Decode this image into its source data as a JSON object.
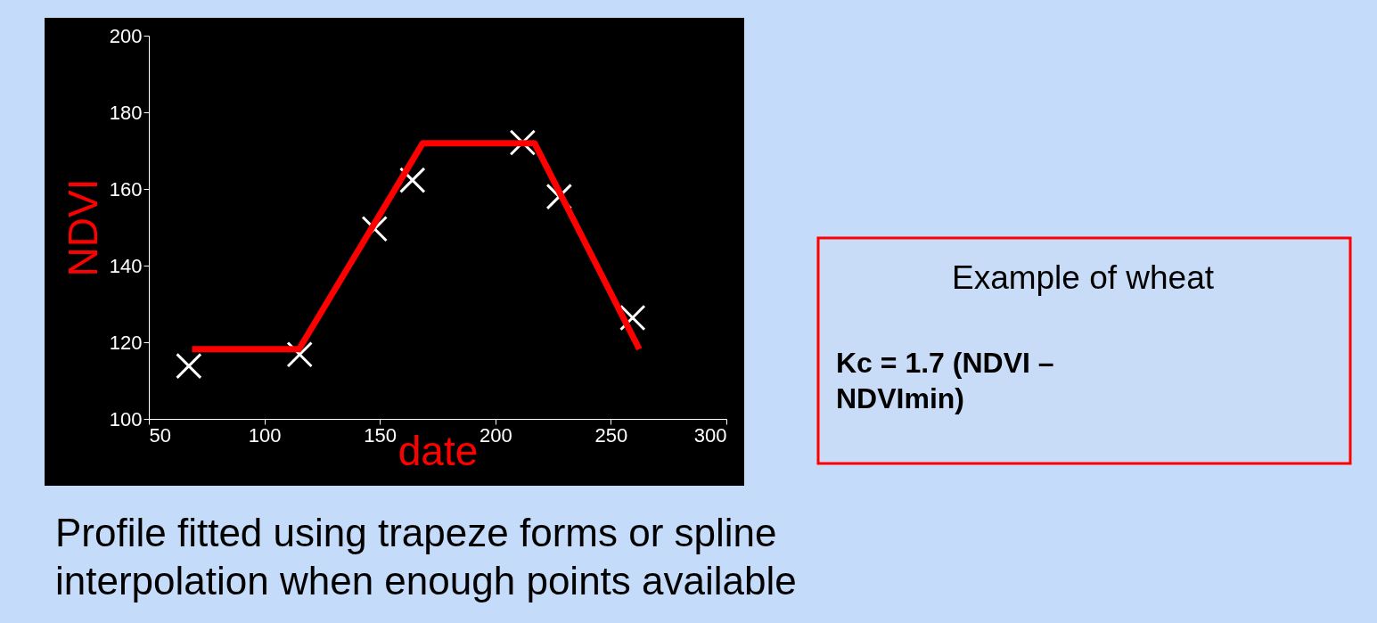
{
  "chart_data": {
    "type": "scatter",
    "xlabel": "date",
    "ylabel": "NDVI",
    "xlim": [
      50,
      300
    ],
    "xticks": [
      50,
      100,
      150,
      200,
      250,
      300
    ],
    "ylim": [
      100,
      200
    ],
    "yticks": [
      100,
      120,
      140,
      160,
      180,
      200
    ],
    "grid": false,
    "series": [
      {
        "type": "scatter",
        "marker": "cross",
        "color": "#ffffff",
        "x": [
          67.3,
          115.3,
          147.7,
          164.1,
          211.8,
          227.6,
          259.4
        ],
        "values": [
          113.8,
          116.8,
          149.6,
          162.3,
          172.1,
          158.0,
          126.4
        ]
      },
      {
        "type": "line",
        "color": "#ff0000",
        "line_style": "solid",
        "x": [
          68.7,
          115,
          168.5,
          217,
          262.3
        ],
        "values": [
          118.2,
          118.2,
          171.9,
          171.9,
          118.2
        ]
      }
    ],
    "annotations": [
      "Example of wheat",
      "Kc = 1.7 (NDVI – NDVImin)",
      "Profile fitted using trapeze forms or spline interpolation when enough points available"
    ]
  }
}
